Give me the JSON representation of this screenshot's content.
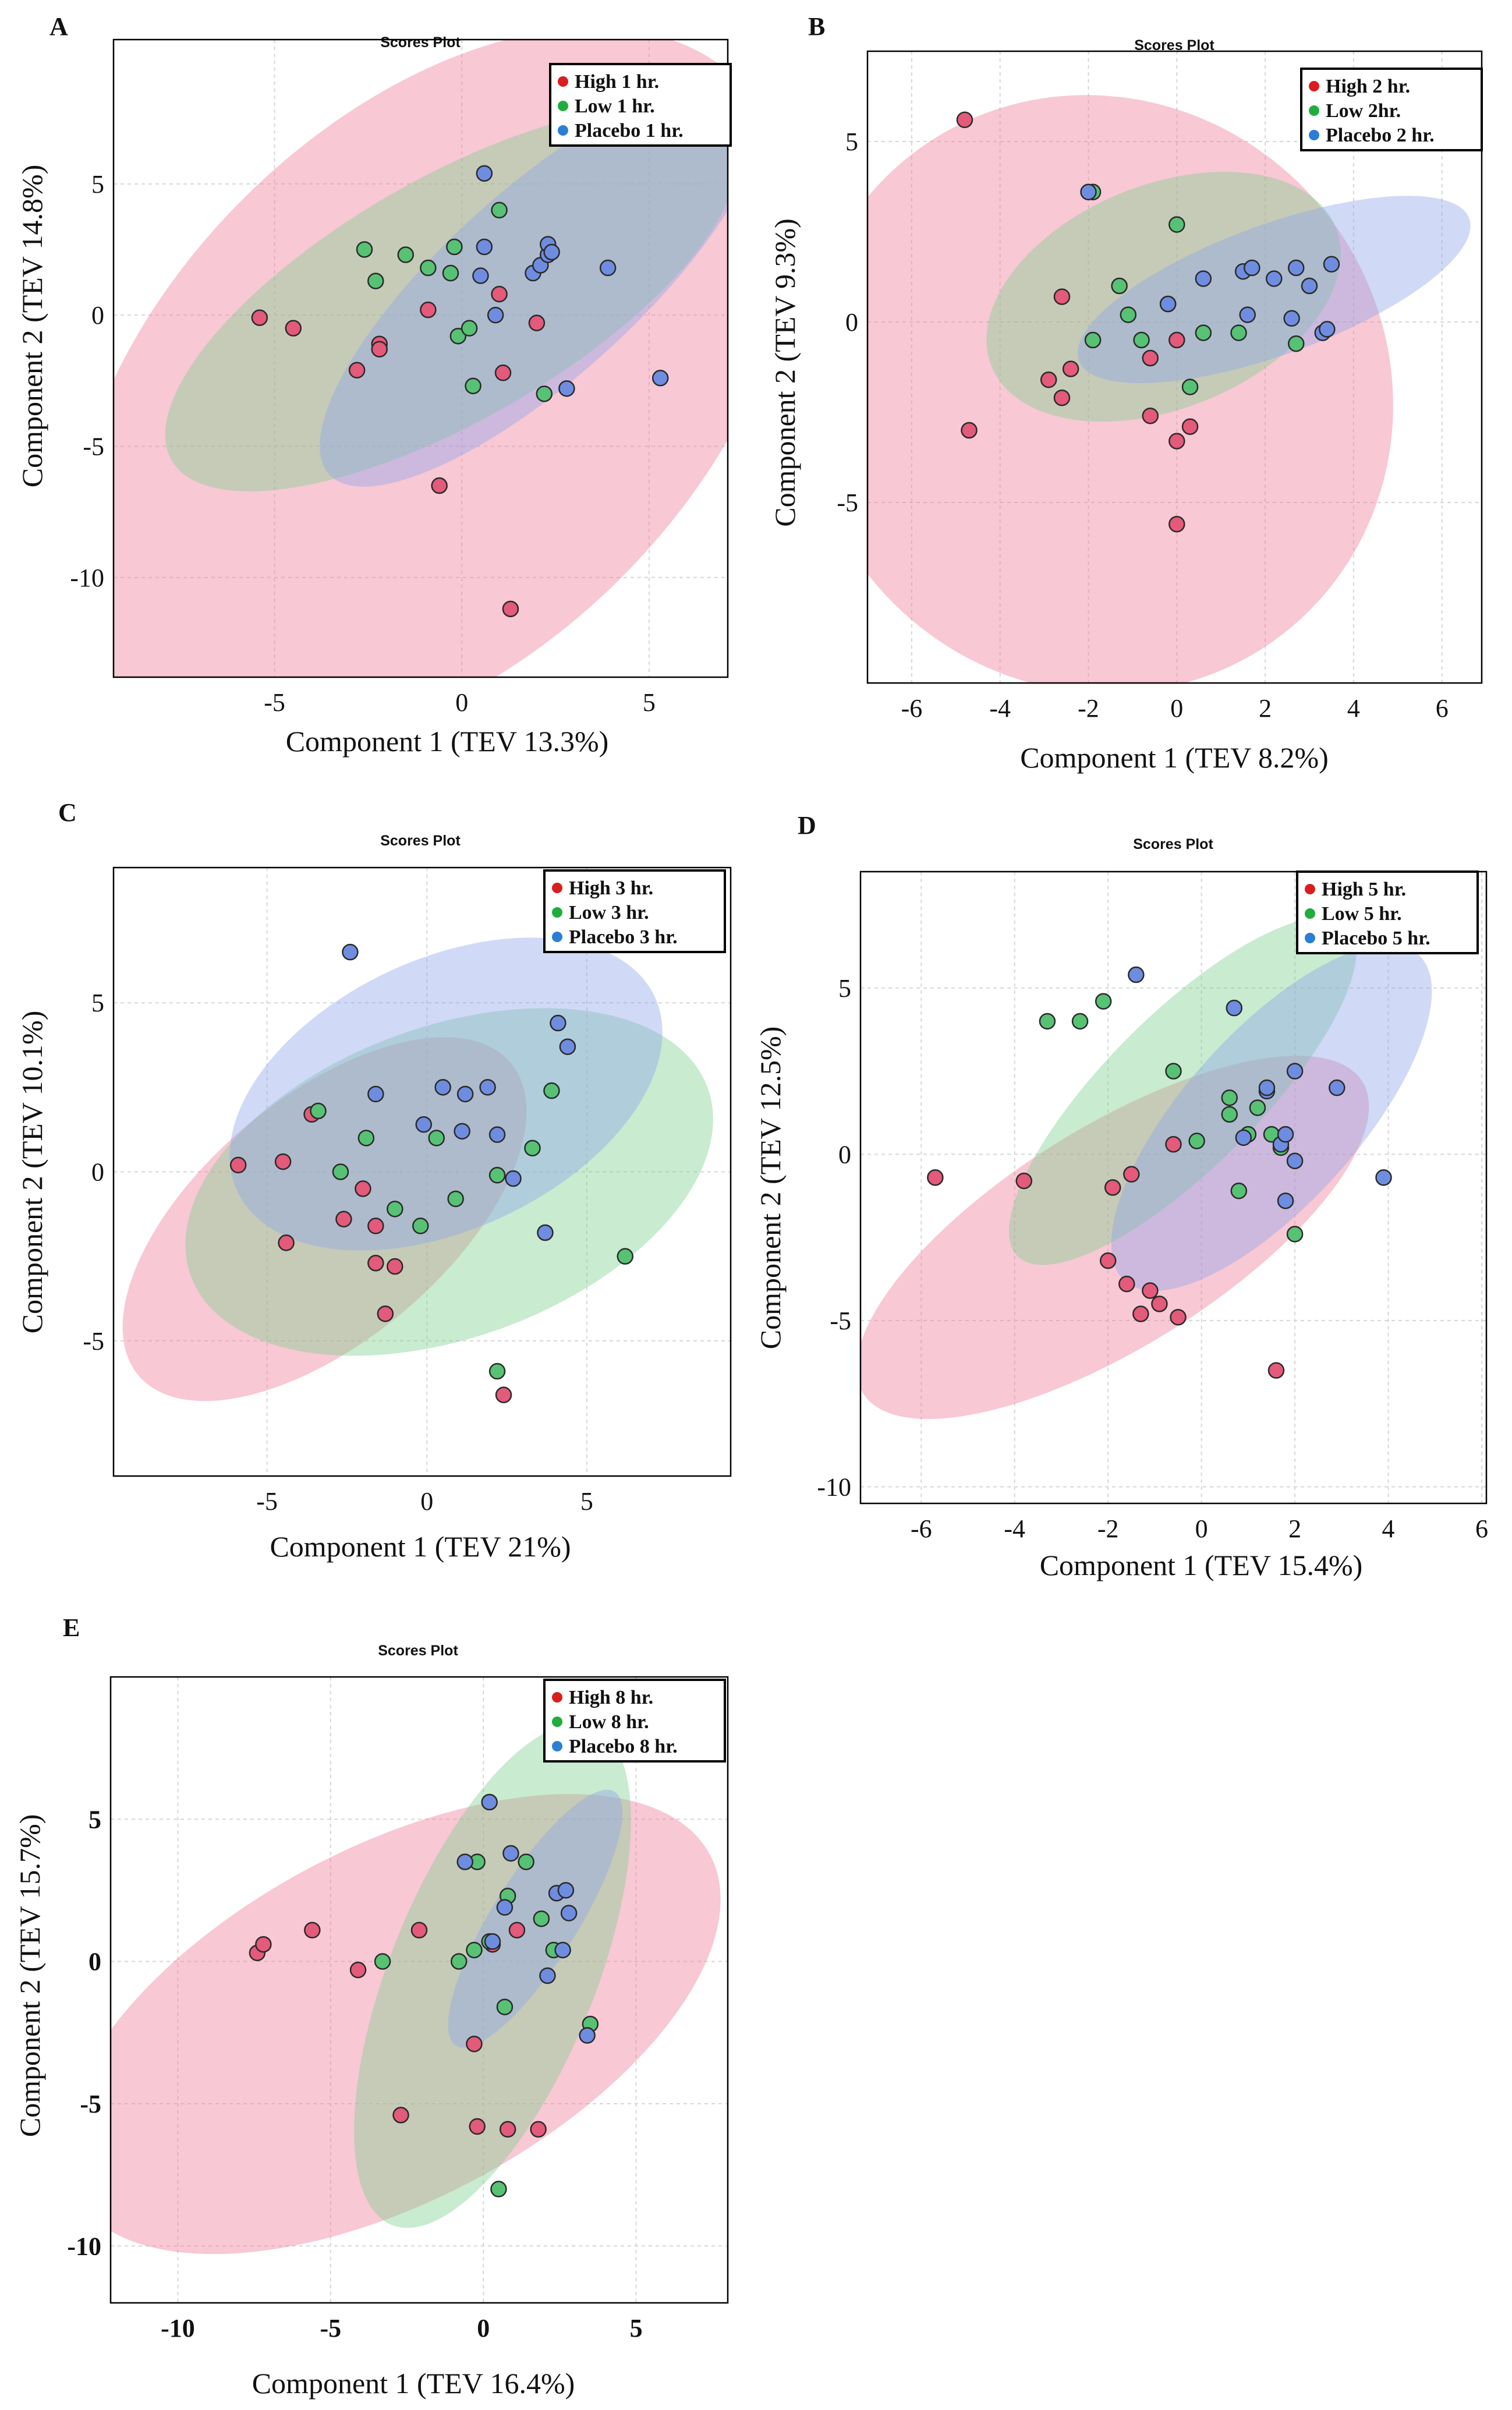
{
  "colors": {
    "high": "#e35a7a",
    "low": "#57c274",
    "placebo": "#6f8de0",
    "high_ellipse": "#ef7d98",
    "low_ellipse": "#7fcf8f",
    "placebo_ellipse": "#8ea4ea",
    "high_dot": "#d91e1e",
    "low_dot": "#1fae3d",
    "placebo_dot": "#2a7fd4"
  },
  "chart_data": [
    {
      "panel": "A",
      "type": "scatter",
      "title": "Scores Plot",
      "xlabel": "Component 1 (TEV 13.3%)",
      "ylabel": "Component 2 (TEV 14.8%)",
      "xlim": [
        -9.3,
        7.1
      ],
      "ylim": [
        -13.8,
        10.5
      ],
      "xticks": [
        -5,
        0,
        5
      ],
      "yticks": [
        5,
        0,
        -5,
        -10
      ],
      "legend": [
        "High 1 hr.",
        "Low 1 hr.",
        "Placebo 1 hr."
      ],
      "ellipses": [
        {
          "group": "high",
          "cx": -0.8,
          "cy": -2.8,
          "rx": 11.6,
          "ry": 10.2,
          "angle": -45
        },
        {
          "group": "low",
          "cx": -0.3,
          "cy": 0.6,
          "rx": 8.6,
          "ry": 4.6,
          "angle": -30
        },
        {
          "group": "placebo",
          "cx": 2.1,
          "cy": 1.2,
          "rx": 7.6,
          "ry": 3.6,
          "angle": -42
        }
      ],
      "series": [
        {
          "name": "High 1 hr.",
          "group": "high",
          "points": [
            [
              -5.4,
              -0.1
            ],
            [
              -4.5,
              -0.5
            ],
            [
              -2.8,
              -2.1
            ],
            [
              -2.2,
              -1.1
            ],
            [
              -2.2,
              -1.3
            ],
            [
              -0.9,
              0.2
            ],
            [
              -0.6,
              -6.5
            ],
            [
              1.0,
              0.8
            ],
            [
              1.1,
              -2.2
            ],
            [
              1.3,
              -11.2
            ],
            [
              2.0,
              -0.3
            ]
          ]
        },
        {
          "name": "Low 1 hr.",
          "group": "low",
          "points": [
            [
              -2.6,
              2.5
            ],
            [
              -2.3,
              1.3
            ],
            [
              -1.5,
              2.3
            ],
            [
              -0.9,
              1.8
            ],
            [
              -0.3,
              1.6
            ],
            [
              -0.2,
              2.6
            ],
            [
              -0.1,
              -0.8
            ],
            [
              0.2,
              -0.5
            ],
            [
              0.3,
              -2.7
            ],
            [
              1.0,
              4.0
            ],
            [
              2.2,
              -3.0
            ]
          ]
        },
        {
          "name": "Placebo 1 hr.",
          "group": "placebo",
          "points": [
            [
              0.6,
              5.4
            ],
            [
              0.6,
              2.6
            ],
            [
              0.5,
              1.5
            ],
            [
              0.9,
              0.0
            ],
            [
              1.9,
              1.6
            ],
            [
              2.1,
              1.9
            ],
            [
              2.3,
              2.3
            ],
            [
              2.3,
              2.7
            ],
            [
              2.4,
              2.4
            ],
            [
              2.8,
              -2.8
            ],
            [
              3.9,
              1.8
            ],
            [
              5.3,
              -2.4
            ]
          ]
        }
      ]
    },
    {
      "panel": "B",
      "type": "scatter",
      "title": "Scores Plot",
      "xlabel": "Component 1 (TEV 8.2%)",
      "ylabel": "Component 2 (TEV 9.3%)",
      "xlim": [
        -7.0,
        6.9
      ],
      "ylim": [
        -10.0,
        7.5
      ],
      "xticks": [
        -6,
        -4,
        -2,
        0,
        2,
        4,
        6
      ],
      "yticks": [
        5,
        0,
        -5
      ],
      "legend": [
        "High 2 hr.",
        "Low 2hr.",
        "Placebo 2 hr."
      ],
      "ellipses": [
        {
          "group": "high",
          "cx": -1.8,
          "cy": -2.0,
          "rx": 6.6,
          "ry": 8.4,
          "angle": -37
        },
        {
          "group": "low",
          "cx": -0.3,
          "cy": 0.7,
          "rx": 4.2,
          "ry": 3.1,
          "angle": -22
        },
        {
          "group": "placebo",
          "cx": 2.2,
          "cy": 0.9,
          "rx": 4.7,
          "ry": 1.8,
          "angle": -20
        }
      ],
      "series": [
        {
          "name": "High 2 hr.",
          "group": "high",
          "points": [
            [
              -4.8,
              5.6
            ],
            [
              -4.7,
              -3.0
            ],
            [
              -2.9,
              -1.6
            ],
            [
              -2.6,
              0.7
            ],
            [
              -2.6,
              -2.1
            ],
            [
              -2.4,
              -1.3
            ],
            [
              -0.6,
              -1.0
            ],
            [
              -0.6,
              -2.6
            ],
            [
              0.0,
              -0.5
            ],
            [
              0.0,
              -3.3
            ],
            [
              0.0,
              -5.6
            ],
            [
              0.3,
              -2.9
            ]
          ]
        },
        {
          "name": "Low 2 hr.",
          "group": "low",
          "points": [
            [
              -1.9,
              3.6
            ],
            [
              -1.9,
              -0.5
            ],
            [
              -1.3,
              1.0
            ],
            [
              -1.1,
              0.2
            ],
            [
              -0.8,
              -0.5
            ],
            [
              0.0,
              2.7
            ],
            [
              -0.2,
              0.5
            ],
            [
              0.3,
              -1.8
            ],
            [
              0.6,
              -0.3
            ],
            [
              1.4,
              -0.3
            ],
            [
              2.7,
              -0.6
            ]
          ]
        },
        {
          "name": "Placebo 2 hr.",
          "group": "placebo",
          "points": [
            [
              -2.0,
              3.6
            ],
            [
              -0.2,
              0.5
            ],
            [
              0.6,
              1.2
            ],
            [
              1.5,
              1.4
            ],
            [
              1.6,
              0.2
            ],
            [
              1.7,
              1.5
            ],
            [
              2.2,
              1.2
            ],
            [
              2.6,
              0.1
            ],
            [
              2.7,
              1.5
            ],
            [
              3.0,
              1.0
            ],
            [
              3.3,
              -0.3
            ],
            [
              3.4,
              -0.2
            ],
            [
              3.5,
              1.6
            ]
          ]
        }
      ]
    },
    {
      "panel": "C",
      "type": "scatter",
      "title": "Scores Plot",
      "xlabel": "Component 1 (TEV 21%)",
      "ylabel": "Component 2 (TEV 10.1%)",
      "xlim": [
        -9.8,
        9.5
      ],
      "ylim": [
        -9.0,
        9.0
      ],
      "xticks": [
        -5,
        0,
        5
      ],
      "yticks": [
        5,
        0,
        -5
      ],
      "legend": [
        "High 3 hr.",
        "Low 3 hr.",
        "Placebo 3 hr."
      ],
      "ellipses": [
        {
          "group": "high",
          "cx": -3.2,
          "cy": -1.4,
          "rx": 7.6,
          "ry": 3.6,
          "angle": -40
        },
        {
          "group": "low",
          "cx": 0.7,
          "cy": -0.3,
          "rx": 8.6,
          "ry": 4.6,
          "angle": -20
        },
        {
          "group": "placebo",
          "cx": 0.6,
          "cy": 2.3,
          "rx": 7.2,
          "ry": 4.0,
          "angle": -25
        }
      ],
      "series": [
        {
          "name": "High 3 hr.",
          "group": "high",
          "points": [
            [
              -5.9,
              0.2
            ],
            [
              -4.5,
              0.3
            ],
            [
              -4.4,
              -2.1
            ],
            [
              -3.6,
              1.7
            ],
            [
              -2.6,
              -1.4
            ],
            [
              -2.0,
              -0.5
            ],
            [
              -1.6,
              -1.6
            ],
            [
              -1.6,
              -2.7
            ],
            [
              -1.3,
              -4.2
            ],
            [
              -1.0,
              -2.8
            ],
            [
              2.4,
              -6.6
            ]
          ]
        },
        {
          "name": "Low 3 hr.",
          "group": "low",
          "points": [
            [
              -3.4,
              1.8
            ],
            [
              -2.7,
              0.0
            ],
            [
              -1.9,
              1.0
            ],
            [
              -1.0,
              -1.1
            ],
            [
              -0.2,
              -1.6
            ],
            [
              0.3,
              1.0
            ],
            [
              0.9,
              -0.8
            ],
            [
              2.2,
              -5.9
            ],
            [
              2.2,
              -0.1
            ],
            [
              3.3,
              0.7
            ],
            [
              3.9,
              2.4
            ],
            [
              6.2,
              -2.5
            ]
          ]
        },
        {
          "name": "Placebo 3 hr.",
          "group": "placebo",
          "points": [
            [
              -2.4,
              6.5
            ],
            [
              -1.6,
              2.3
            ],
            [
              -0.1,
              1.4
            ],
            [
              0.5,
              2.5
            ],
            [
              1.1,
              1.2
            ],
            [
              1.2,
              2.3
            ],
            [
              1.9,
              2.5
            ],
            [
              2.2,
              1.1
            ],
            [
              2.7,
              -0.2
            ],
            [
              3.7,
              -1.8
            ],
            [
              4.1,
              4.4
            ],
            [
              4.4,
              3.7
            ]
          ]
        }
      ]
    },
    {
      "panel": "D",
      "type": "scatter",
      "title": "Scores Plot",
      "xlabel": "Component 1 (TEV 15.4%)",
      "ylabel": "Component 2 (TEV 12.5%)",
      "xlim": [
        -7.3,
        6.1
      ],
      "ylim": [
        -10.5,
        8.5
      ],
      "xticks": [
        -6,
        -4,
        -2,
        0,
        2,
        4,
        6
      ],
      "yticks": [
        5,
        0,
        -5,
        -10
      ],
      "legend": [
        "High 5 hr.",
        "Low 5 hr.",
        "Placebo 5 hr."
      ],
      "ellipses": [
        {
          "group": "high",
          "cx": -1.9,
          "cy": -2.5,
          "rx": 6.3,
          "ry": 3.3,
          "angle": -32
        },
        {
          "group": "low",
          "cx": -0.4,
          "cy": 1.9,
          "rx": 5.0,
          "ry": 2.3,
          "angle": -45
        },
        {
          "group": "placebo",
          "cx": 1.5,
          "cy": 1.1,
          "rx": 4.7,
          "ry": 2.6,
          "angle": -48
        }
      ],
      "series": [
        {
          "name": "High 5 hr.",
          "group": "high",
          "points": [
            [
              -5.7,
              -0.7
            ],
            [
              -3.8,
              -0.8
            ],
            [
              -2.0,
              -3.2
            ],
            [
              -1.9,
              -1.0
            ],
            [
              -1.6,
              -3.9
            ],
            [
              -1.5,
              -0.6
            ],
            [
              -1.3,
              -4.8
            ],
            [
              -1.1,
              -4.1
            ],
            [
              -0.9,
              -4.5
            ],
            [
              -0.6,
              0.3
            ],
            [
              -0.5,
              -4.9
            ],
            [
              1.6,
              -6.5
            ]
          ]
        },
        {
          "name": "Low 5 hr.",
          "group": "low",
          "points": [
            [
              -3.3,
              4.0
            ],
            [
              -2.6,
              4.0
            ],
            [
              -2.1,
              4.6
            ],
            [
              -0.6,
              2.5
            ],
            [
              -0.1,
              0.4
            ],
            [
              0.6,
              1.7
            ],
            [
              0.6,
              1.2
            ],
            [
              0.8,
              -1.1
            ],
            [
              1.0,
              0.6
            ],
            [
              1.2,
              1.4
            ],
            [
              1.5,
              0.6
            ],
            [
              1.7,
              0.2
            ],
            [
              2.0,
              -2.4
            ]
          ]
        },
        {
          "name": "Placebo 5 hr.",
          "group": "placebo",
          "points": [
            [
              -1.4,
              5.4
            ],
            [
              0.7,
              4.4
            ],
            [
              0.9,
              0.5
            ],
            [
              1.4,
              1.9
            ],
            [
              1.4,
              2.0
            ],
            [
              1.7,
              0.3
            ],
            [
              1.8,
              -1.4
            ],
            [
              1.8,
              0.6
            ],
            [
              2.0,
              -0.2
            ],
            [
              2.0,
              2.5
            ],
            [
              2.9,
              2.0
            ],
            [
              3.9,
              -0.7
            ]
          ]
        }
      ]
    },
    {
      "panel": "E",
      "type": "scatter",
      "title": "Scores Plot",
      "xlabel": "Component 1 (TEV 16.4%)",
      "ylabel": "Component 2 (TEV 15.7%)",
      "xlim": [
        -12.2,
        8.0
      ],
      "ylim": [
        -12.0,
        10.0
      ],
      "xticks": [
        -10,
        -5,
        0,
        5
      ],
      "yticks": [
        5,
        0,
        -5,
        -10
      ],
      "legend": [
        "High 8 hr.",
        "Low 8 hr.",
        "Placebo 8 hr."
      ],
      "ellipses": [
        {
          "group": "high",
          "cx": -3.0,
          "cy": -2.2,
          "rx": 11.8,
          "ry": 6.2,
          "angle": -28
        },
        {
          "group": "low",
          "cx": 0.3,
          "cy": -0.5,
          "rx": 8.8,
          "ry": 3.6,
          "angle": -68
        },
        {
          "group": "placebo",
          "cx": 1.7,
          "cy": 1.5,
          "rx": 4.9,
          "ry": 1.5,
          "angle": -58
        }
      ],
      "series": [
        {
          "name": "High 8 hr.",
          "group": "high",
          "points": [
            [
              -7.4,
              0.3
            ],
            [
              -7.2,
              0.6
            ],
            [
              -5.6,
              1.1
            ],
            [
              -4.1,
              -0.3
            ],
            [
              -2.1,
              1.1
            ],
            [
              -2.7,
              -5.4
            ],
            [
              -0.3,
              -2.9
            ],
            [
              -0.2,
              -5.8
            ],
            [
              0.3,
              0.6
            ],
            [
              0.8,
              -5.9
            ],
            [
              1.1,
              1.1
            ],
            [
              1.8,
              -5.9
            ]
          ]
        },
        {
          "name": "Low 8 hr.",
          "group": "low",
          "points": [
            [
              -3.3,
              0.0
            ],
            [
              -0.8,
              0.0
            ],
            [
              -0.3,
              0.4
            ],
            [
              -0.2,
              3.5
            ],
            [
              0.2,
              0.7
            ],
            [
              0.5,
              -8.0
            ],
            [
              0.7,
              -1.6
            ],
            [
              0.8,
              2.3
            ],
            [
              1.4,
              3.5
            ],
            [
              1.9,
              1.5
            ],
            [
              2.3,
              0.4
            ],
            [
              3.5,
              -2.2
            ]
          ]
        },
        {
          "name": "Placebo 8 hr.",
          "group": "placebo",
          "points": [
            [
              -0.6,
              3.5
            ],
            [
              0.2,
              5.6
            ],
            [
              0.7,
              1.9
            ],
            [
              0.9,
              3.8
            ],
            [
              2.1,
              -0.5
            ],
            [
              2.4,
              2.4
            ],
            [
              2.6,
              0.4
            ],
            [
              2.7,
              2.5
            ],
            [
              2.8,
              1.7
            ],
            [
              3.4,
              -2.6
            ],
            [
              0.3,
              0.7
            ]
          ]
        }
      ]
    }
  ]
}
